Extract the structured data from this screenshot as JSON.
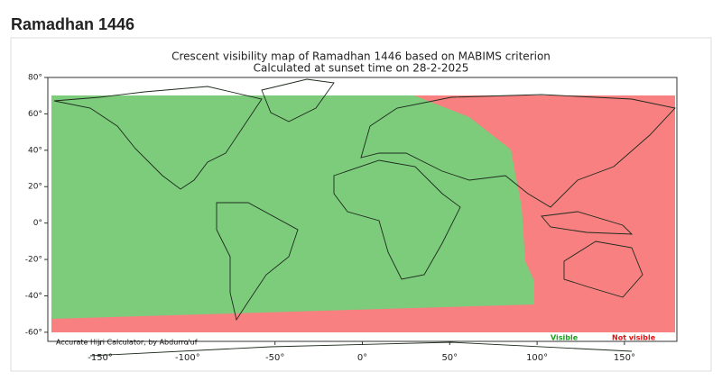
{
  "header": {
    "title": "Ramadhan 1446"
  },
  "map": {
    "title": [
      "Crescent visibility map of Ramadhan 1446 based on MABIMS criterion",
      "Calculated at sunset time on 28-2-2025"
    ],
    "xlim": [
      -180,
      180
    ],
    "ylim": [
      -65,
      80
    ],
    "xticks": [
      {
        "value": -150,
        "label": "-150°"
      },
      {
        "value": -100,
        "label": "-100°"
      },
      {
        "value": -50,
        "label": "-50°"
      },
      {
        "value": 0,
        "label": "0°"
      },
      {
        "value": 50,
        "label": "50°"
      },
      {
        "value": 100,
        "label": "100°"
      },
      {
        "value": 150,
        "label": "150°"
      }
    ],
    "yticks": [
      {
        "value": 80,
        "label": "80°"
      },
      {
        "value": 60,
        "label": "60°"
      },
      {
        "value": 40,
        "label": "40°"
      },
      {
        "value": 20,
        "label": "20°"
      },
      {
        "value": 0,
        "label": "0°"
      },
      {
        "value": -20,
        "label": "-20°"
      },
      {
        "value": -40,
        "label": "-40°"
      },
      {
        "value": -60,
        "label": "-60°"
      }
    ],
    "legend": [
      {
        "name": "Visible",
        "color": "#1a9e1a"
      },
      {
        "name": "Not visible",
        "color": "#e01010"
      }
    ],
    "credit": "Accurate Hijri Calculator, by Abdurro'uf"
  }
}
